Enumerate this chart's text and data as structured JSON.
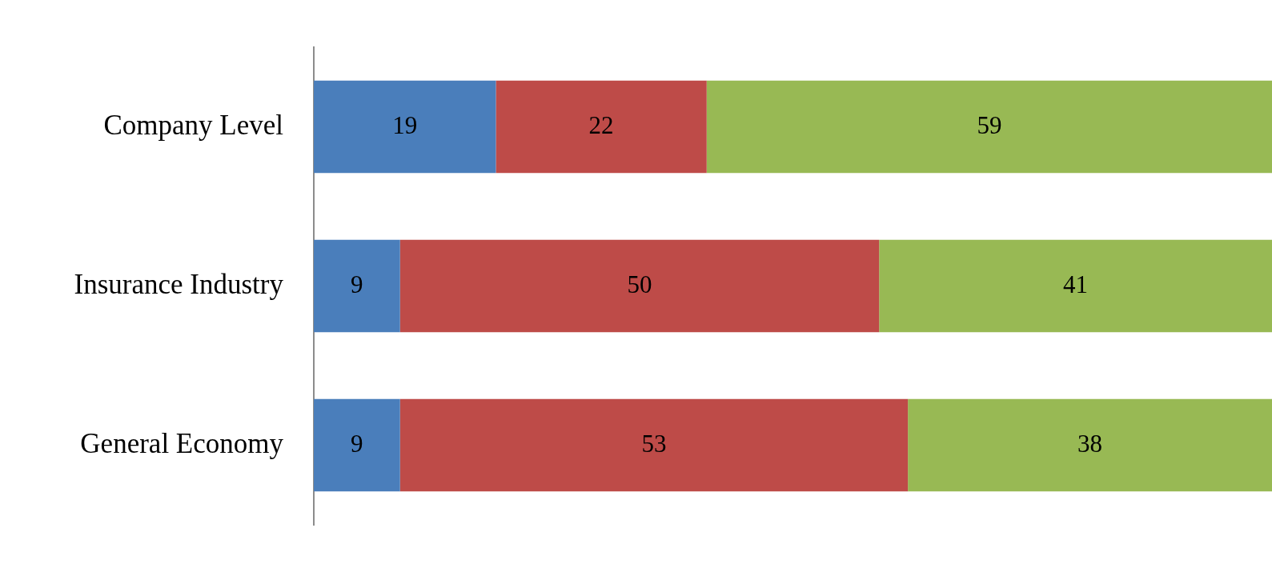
{
  "chart_data": {
    "type": "bar",
    "orientation": "horizontal",
    "stacked": true,
    "categories": [
      "Company Level",
      "Insurance Industry",
      "General Economy"
    ],
    "series": [
      {
        "color": "#4a7ebb",
        "values": [
          19,
          9,
          9
        ]
      },
      {
        "color": "#be4b48",
        "values": [
          22,
          50,
          53
        ]
      },
      {
        "color": "#98b954",
        "values": [
          59,
          41,
          38
        ]
      }
    ],
    "xlim": [
      0,
      100
    ],
    "tick_labels": "y",
    "legend": false,
    "data_labels": true
  }
}
